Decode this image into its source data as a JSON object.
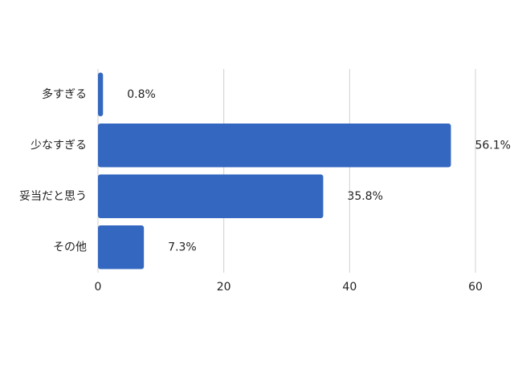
{
  "chart_data": {
    "type": "bar",
    "orientation": "horizontal",
    "categories": [
      "多すぎる",
      "少なすぎる",
      "妥当だと思う",
      "その他"
    ],
    "values": [
      0.8,
      56.1,
      35.8,
      7.3
    ],
    "value_labels": [
      "0.8%",
      "56.1%",
      "35.8%",
      "7.3%"
    ],
    "color": "#3468c0",
    "xlim": [
      0,
      60
    ],
    "xticks": [
      0,
      20,
      40,
      60
    ],
    "grid": true
  }
}
